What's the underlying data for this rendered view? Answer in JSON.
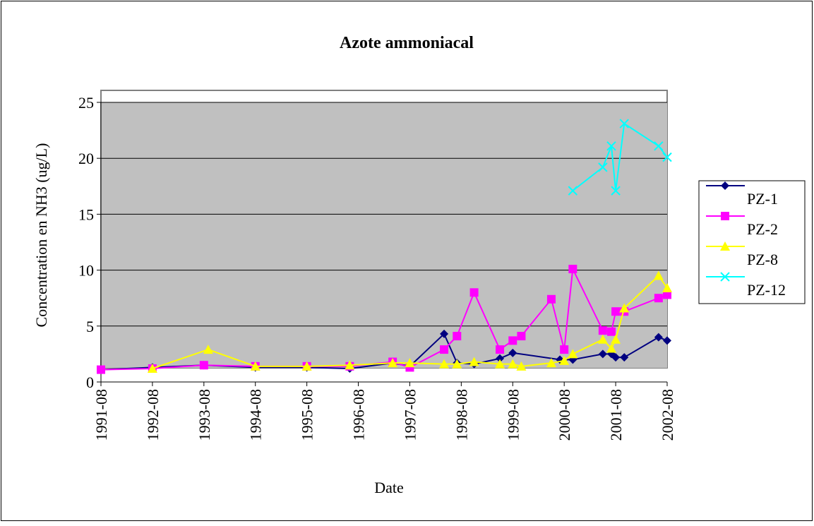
{
  "chart_data": {
    "type": "line",
    "title": "Azote ammoniacal",
    "x_label": "Date",
    "y_label": "Concentration en NH3 (ug/L)",
    "xlim": [
      "1991-08",
      "2002-08"
    ],
    "xticks": [
      "1991-08",
      "1992-08",
      "1993-08",
      "1994-08",
      "1995-08",
      "1996-08",
      "1997-08",
      "1998-08",
      "1999-08",
      "2000-08",
      "2001-08",
      "2002-08"
    ],
    "ylim": [
      0,
      25
    ],
    "yticks": [
      0,
      5,
      10,
      15,
      20,
      25
    ],
    "grid": true,
    "legend": "right",
    "series": [
      {
        "name": "PZ-1",
        "color": "#000080",
        "marker": "diamond",
        "x": [
          "1991-08",
          "1992-08",
          "1993-08",
          "1994-08",
          "1995-08",
          "1996-06",
          "1997-04",
          "1997-08",
          "1998-04",
          "1998-07",
          "1998-11",
          "1999-05",
          "1999-08",
          "2000-07",
          "2000-10",
          "2001-05",
          "2001-07",
          "2001-08",
          "2001-10",
          "2002-06",
          "2002-08"
        ],
        "values": [
          1.1,
          1.3,
          1.5,
          1.3,
          1.3,
          1.2,
          1.7,
          1.4,
          4.3,
          1.7,
          1.6,
          2.1,
          2.6,
          2.0,
          2.0,
          2.5,
          2.5,
          2.2,
          2.2,
          4.0,
          3.7
        ]
      },
      {
        "name": "PZ-2",
        "color": "#ff00ff",
        "marker": "square",
        "x": [
          "1991-08",
          "1992-08",
          "1993-08",
          "1994-08",
          "1995-08",
          "1996-06",
          "1997-04",
          "1997-08",
          "1998-04",
          "1998-07",
          "1998-11",
          "1999-05",
          "1999-08",
          "1999-10",
          "2000-05",
          "2000-08",
          "2000-10",
          "2001-05",
          "2001-07",
          "2001-08",
          "2001-10",
          "2002-06",
          "2002-08"
        ],
        "values": [
          1.1,
          1.2,
          1.5,
          1.4,
          1.4,
          1.4,
          1.8,
          1.3,
          2.9,
          4.1,
          8.0,
          2.9,
          3.7,
          4.1,
          7.4,
          2.9,
          10.1,
          4.6,
          4.5,
          6.3,
          6.3,
          7.5,
          7.8
        ]
      },
      {
        "name": "PZ-8",
        "color": "#ffff00",
        "marker": "triangle",
        "x": [
          "1992-08",
          "1993-09",
          "1994-08",
          "1995-08",
          "1996-06",
          "1997-04",
          "1997-08",
          "1998-04",
          "1998-07",
          "1998-11",
          "1999-05",
          "1999-08",
          "1999-10",
          "2000-05",
          "2000-08",
          "2000-10",
          "2001-05",
          "2001-07",
          "2001-08",
          "2001-10",
          "2002-06",
          "2002-08"
        ],
        "values": [
          1.2,
          2.9,
          1.4,
          1.4,
          1.5,
          1.7,
          1.7,
          1.6,
          1.6,
          1.8,
          1.6,
          1.6,
          1.4,
          1.7,
          1.9,
          2.5,
          3.8,
          3.0,
          3.8,
          6.6,
          9.5,
          8.4
        ]
      },
      {
        "name": "PZ-12",
        "color": "#00ffff",
        "marker": "x",
        "x": [
          "2000-10",
          "2001-05",
          "2001-07",
          "2001-08",
          "2001-10",
          "2002-06",
          "2002-08"
        ],
        "values": [
          17.1,
          19.2,
          21.1,
          17.1,
          23.1,
          21.1,
          20.1
        ]
      }
    ]
  }
}
